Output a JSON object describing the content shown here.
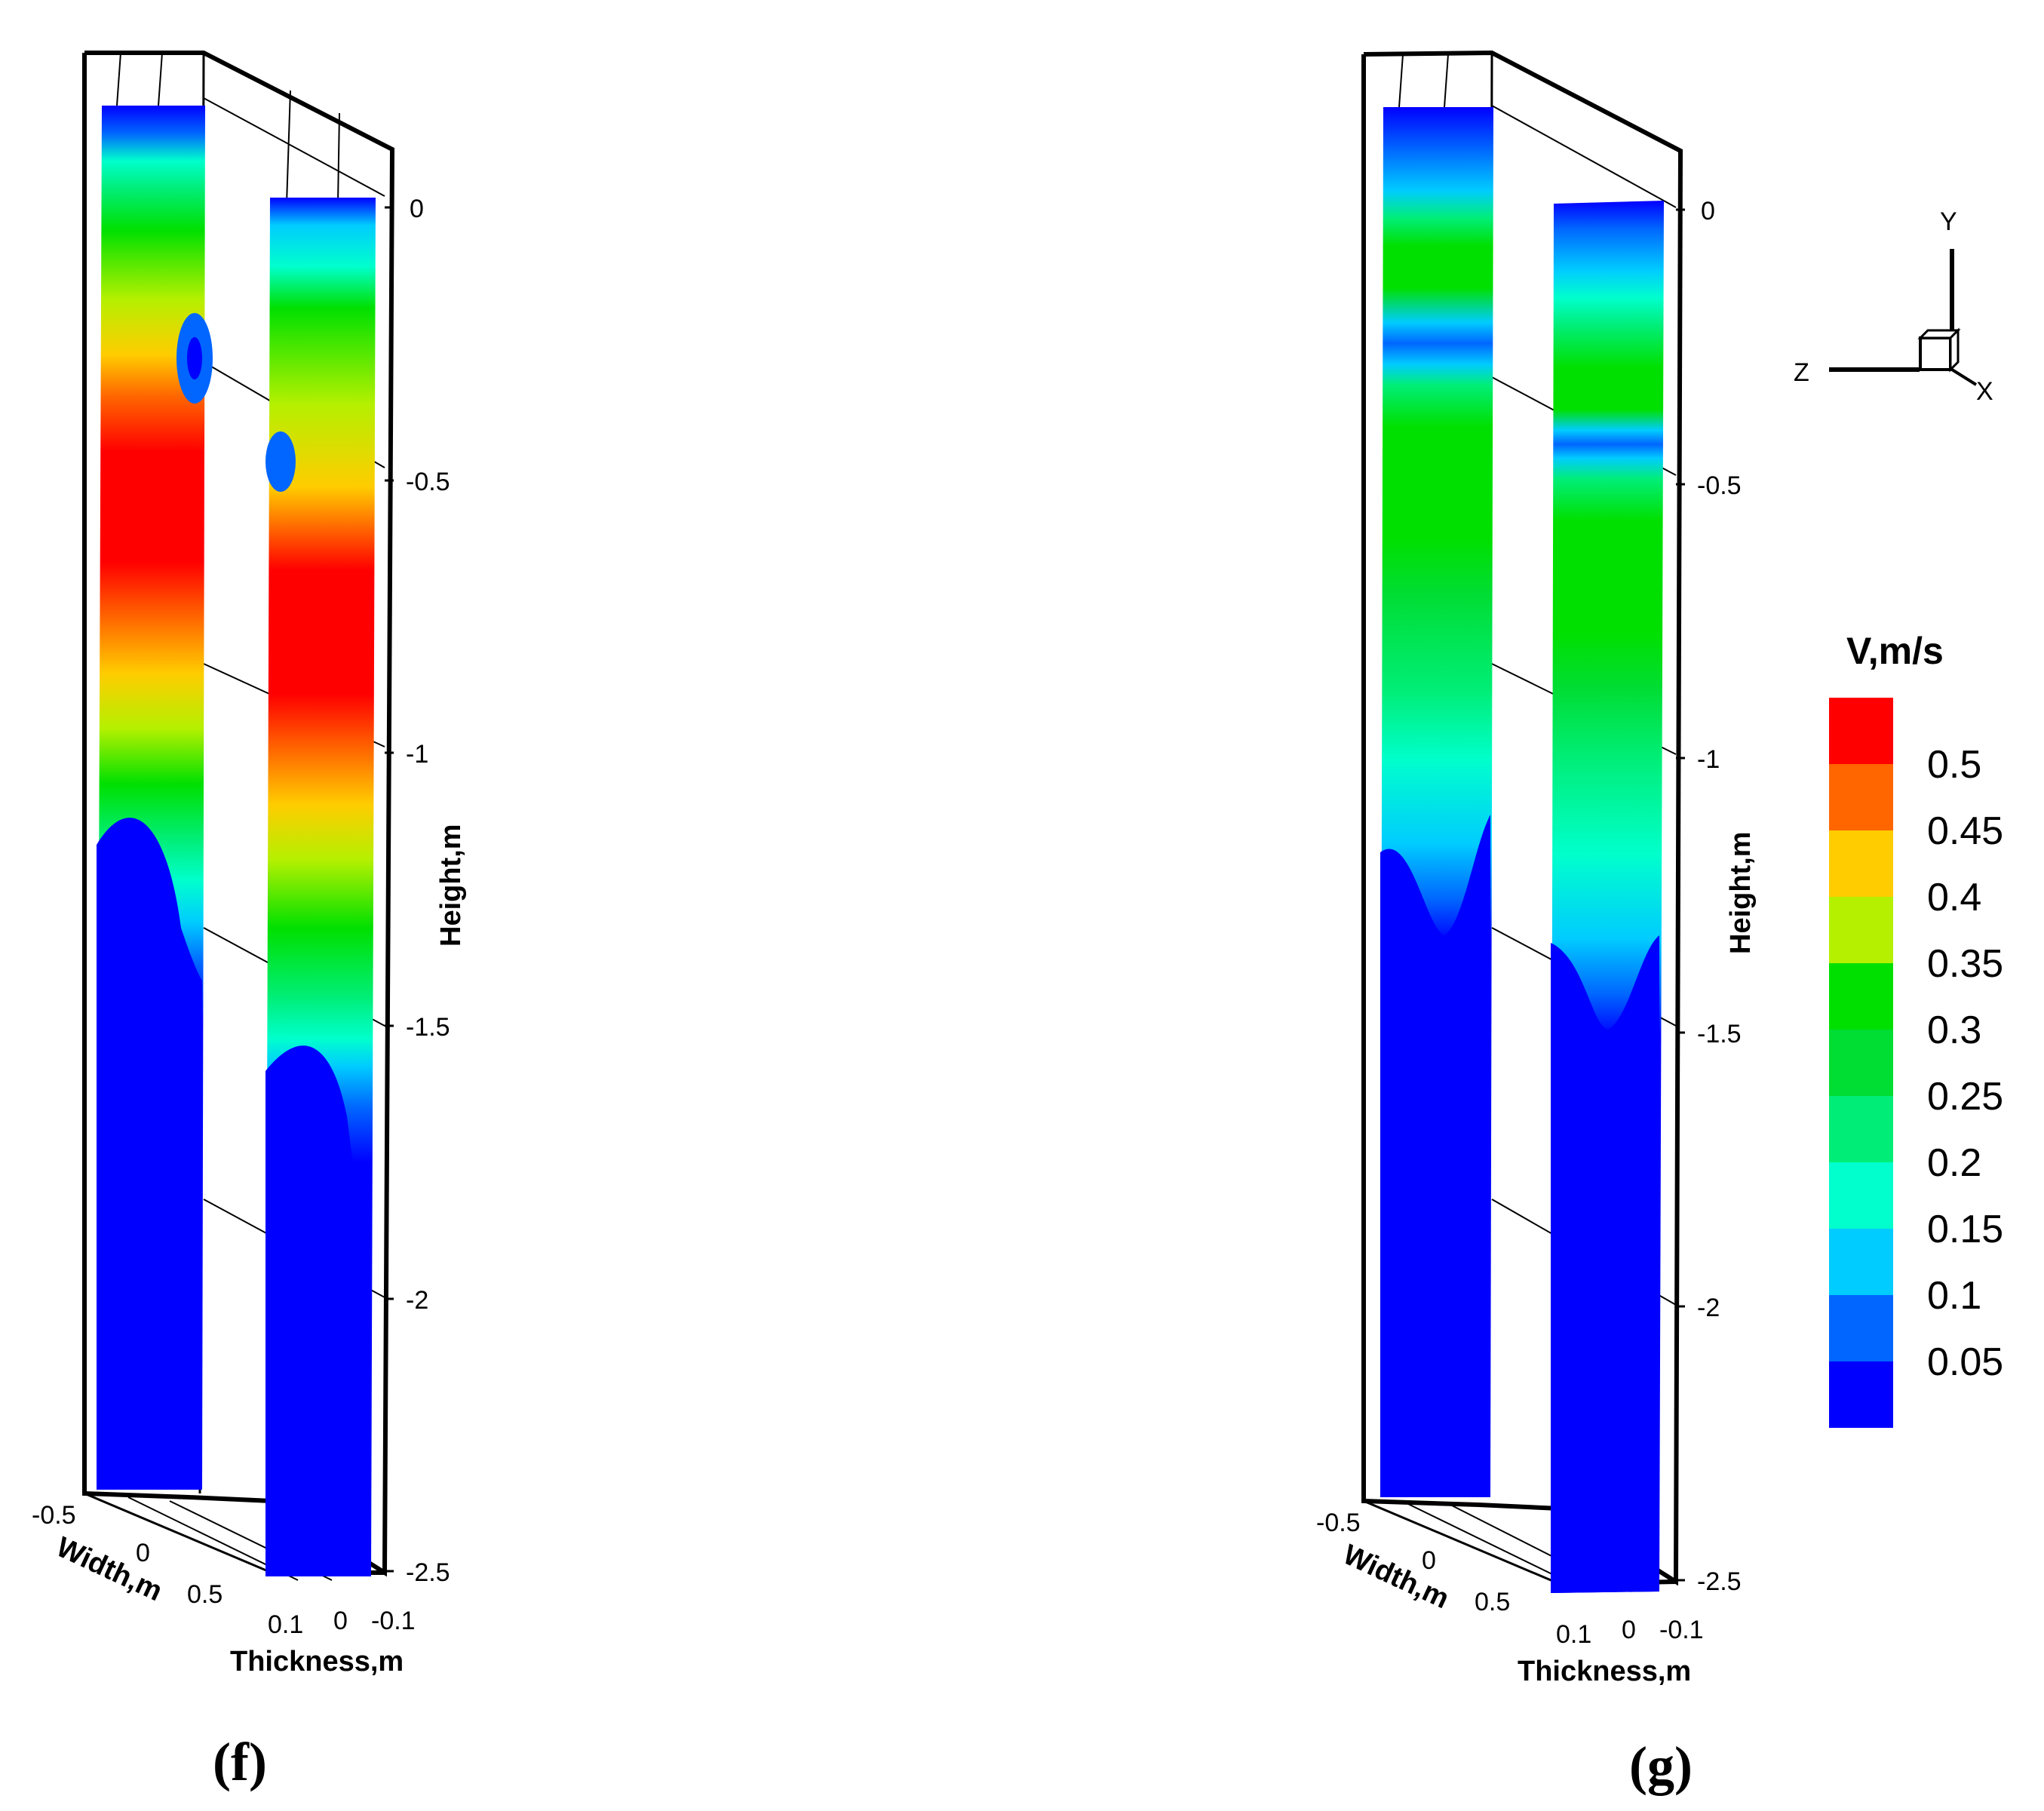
{
  "chart_data": {
    "type": "heatmap",
    "quantity": "V,m/s",
    "legend": {
      "title": "V,m/s",
      "levels": [
        "0.5",
        "0.45",
        "0.4",
        "0.35",
        "0.3",
        "0.25",
        "0.2",
        "0.15",
        "0.1",
        "0.05"
      ],
      "colors": [
        "#ff0000",
        "#ff6600",
        "#ffcc00",
        "#b5f000",
        "#00e000",
        "#00dd33",
        "#00ee77",
        "#00ffcc",
        "#00ccff",
        "#0066ff",
        "#0000ff"
      ]
    },
    "axes": {
      "height": {
        "title": "Height,m",
        "ticks": [
          "0",
          "-0.5",
          "-1",
          "-1.5",
          "-2",
          "-2.5"
        ],
        "range": [
          -2.5,
          0
        ]
      },
      "width": {
        "title": "Width,m",
        "ticks": [
          "-0.5",
          "0",
          "0.5"
        ],
        "range": [
          -0.5,
          0.5
        ]
      },
      "thickness": {
        "title": "Thickness,m",
        "ticks": [
          "0.1",
          "0",
          "-0.1"
        ],
        "range": [
          -0.1,
          0.1
        ]
      }
    },
    "triad": {
      "y": "Y",
      "z": "Z",
      "x": "X"
    },
    "panels": [
      {
        "label": "(f)",
        "max_velocity_region": "0.5"
      },
      {
        "label": "(g)",
        "max_velocity_region": "0.3"
      }
    ]
  }
}
